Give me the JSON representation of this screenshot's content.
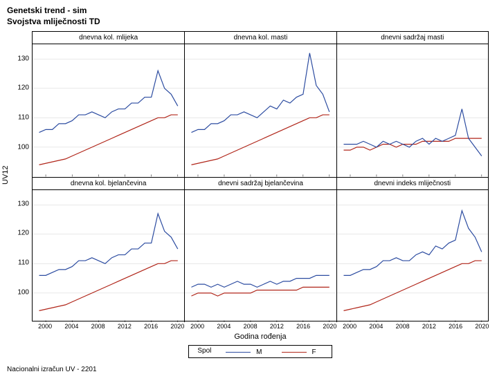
{
  "title_line1": "Genetski trend - sim",
  "title_line2": "Svojstva mliječnosti TD",
  "y_axis_label": "UV12",
  "x_axis_label": "Godina rođenja",
  "legend_title": "Spol",
  "legend_items": [
    {
      "label": "M",
      "color": "#2b4ba0"
    },
    {
      "label": "F",
      "color": "#b02418"
    }
  ],
  "footer": "Nacionalni izračun UV - 2201",
  "chart": {
    "type": "line-grid",
    "rows": 2,
    "cols": 3,
    "ylim": [
      90,
      135
    ],
    "yticks": [
      100,
      110,
      120,
      130
    ],
    "xlim": [
      1998,
      2021
    ],
    "xticks": [
      2000,
      2004,
      2008,
      2012,
      2016,
      2020
    ],
    "grid_color": "#d0d0d0",
    "background": "#ffffff",
    "line_width": 1.2,
    "series_colors": {
      "M": "#2b4ba0",
      "F": "#b02418"
    },
    "x_values": [
      1999,
      2000,
      2001,
      2002,
      2003,
      2004,
      2005,
      2006,
      2007,
      2008,
      2009,
      2010,
      2011,
      2012,
      2013,
      2014,
      2015,
      2016,
      2017,
      2018,
      2019,
      2020
    ],
    "panels": [
      {
        "title": "dnevna kol. mlijeka",
        "M": [
          105,
          106,
          106,
          108,
          108,
          109,
          111,
          111,
          112,
          111,
          110,
          112,
          113,
          113,
          115,
          115,
          117,
          117,
          126,
          120,
          118,
          114
        ],
        "F": [
          94,
          94.5,
          95,
          95.5,
          96,
          97,
          98,
          99,
          100,
          101,
          102,
          103,
          104,
          105,
          106,
          107,
          108,
          109,
          110,
          110,
          111,
          111
        ]
      },
      {
        "title": "dnevna kol. masti",
        "M": [
          105,
          106,
          106,
          108,
          108,
          109,
          111,
          111,
          112,
          111,
          110,
          112,
          114,
          113,
          116,
          115,
          117,
          118,
          132,
          121,
          118,
          112
        ],
        "F": [
          94,
          94.5,
          95,
          95.5,
          96,
          97,
          98,
          99,
          100,
          101,
          102,
          103,
          104,
          105,
          106,
          107,
          108,
          109,
          110,
          110,
          111,
          111
        ]
      },
      {
        "title": "dnevni sadržaj masti",
        "M": [
          101,
          101,
          101,
          102,
          101,
          100,
          102,
          101,
          102,
          101,
          100,
          102,
          103,
          101,
          103,
          102,
          103,
          104,
          113,
          103,
          100,
          97
        ],
        "F": [
          99,
          99,
          100,
          100,
          99,
          100,
          101,
          101,
          100,
          101,
          101,
          101,
          102,
          102,
          102,
          102,
          102,
          103,
          103,
          103,
          103,
          103
        ]
      },
      {
        "title": "dnevna kol. bjelančevina",
        "M": [
          106,
          106,
          107,
          108,
          108,
          109,
          111,
          111,
          112,
          111,
          110,
          112,
          113,
          113,
          115,
          115,
          117,
          117,
          127,
          121,
          119,
          115
        ],
        "F": [
          94,
          94.5,
          95,
          95.5,
          96,
          97,
          98,
          99,
          100,
          101,
          102,
          103,
          104,
          105,
          106,
          107,
          108,
          109,
          110,
          110,
          111,
          111
        ]
      },
      {
        "title": "dnevni sadržaj bjelančevina",
        "M": [
          102,
          103,
          103,
          102,
          103,
          102,
          103,
          104,
          103,
          103,
          102,
          103,
          104,
          103,
          104,
          104,
          105,
          105,
          105,
          106,
          106,
          106
        ],
        "F": [
          99,
          100,
          100,
          100,
          99,
          100,
          100,
          100,
          100,
          100,
          101,
          101,
          101,
          101,
          101,
          101,
          101,
          102,
          102,
          102,
          102,
          102
        ]
      },
      {
        "title": "dnevni indeks mliječnosti",
        "M": [
          106,
          106,
          107,
          108,
          108,
          109,
          111,
          111,
          112,
          111,
          111,
          113,
          114,
          113,
          116,
          115,
          117,
          118,
          128,
          122,
          119,
          114
        ],
        "F": [
          94,
          94.5,
          95,
          95.5,
          96,
          97,
          98,
          99,
          100,
          101,
          102,
          103,
          104,
          105,
          106,
          107,
          108,
          109,
          110,
          110,
          111,
          111
        ]
      }
    ]
  }
}
